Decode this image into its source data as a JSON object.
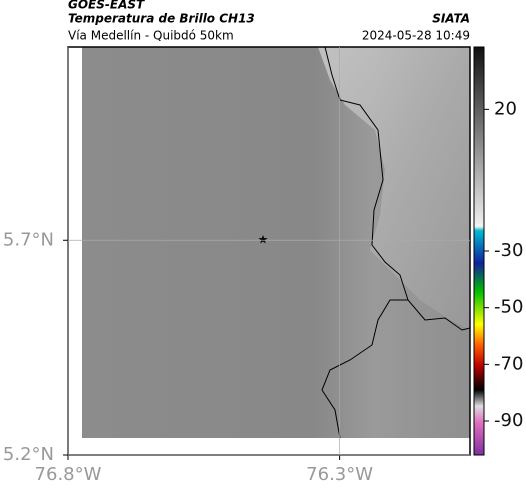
{
  "header": {
    "title": "GOES-EAST",
    "subtitle": "Temperatura de Brillo CH13",
    "route": "Vía Medellín - Quibdó 50km",
    "source": "SIATA",
    "datetime": "2024-05-28 10:49"
  },
  "map": {
    "xlim": [
      -76.8,
      -76.06
    ],
    "ylim": [
      5.2,
      6.15
    ],
    "xticks": [
      {
        "value": -76.8,
        "label": "76.8°W"
      },
      {
        "value": -76.3,
        "label": "76.3°W"
      }
    ],
    "yticks": [
      {
        "value": 5.7,
        "label": "5.7°N"
      },
      {
        "value": 5.2,
        "label": "5.2°N"
      }
    ]
  },
  "colorbar": {
    "clim": [
      42,
      -102
    ],
    "ticks": [
      20,
      -30,
      -50,
      -70,
      -90
    ]
  }
}
